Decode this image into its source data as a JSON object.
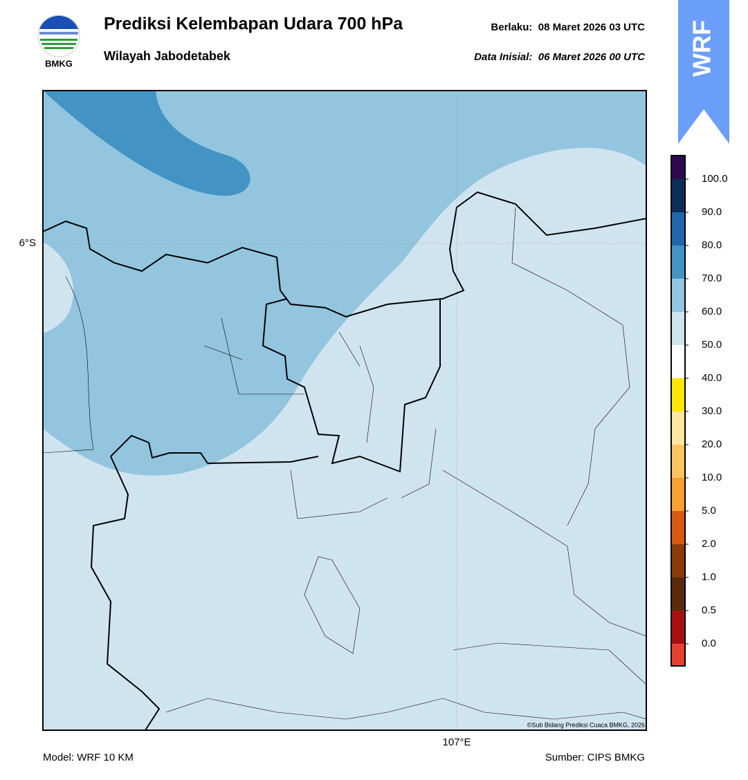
{
  "header": {
    "logo_text": "BMKG",
    "title": "Prediksi Kelembapan Udara 700 hPa",
    "subtitle": "Wilayah Jabodetabek",
    "valid": "Berlaku:  08 Maret 2026 03 UTC",
    "init": "Data Inisial:  06 Maret 2026 00 UTC",
    "badge": "WRF"
  },
  "map": {
    "lat_label": "6°S",
    "lon_label": "107°E",
    "credit": "©Sub Bidang Prediksi Cuaca BMKG, 2026"
  },
  "colorbar": {
    "labels": [
      "0.0",
      "0.5",
      "1.0",
      "2.0",
      "5.0",
      "10.0",
      "20.0",
      "30.0",
      "40.0",
      "50.0",
      "60.0",
      "70.0",
      "80.0",
      "90.0",
      "100.0"
    ],
    "colors": [
      "#e8402f",
      "#a81010",
      "#5a2a0a",
      "#8b3a08",
      "#d85a10",
      "#f8a030",
      "#fcc460",
      "#fde6a0",
      "#ffe600",
      "#ffffff",
      "#d0e4f0",
      "#93c5de",
      "#4393c4",
      "#2166ac",
      "#0c2d5a",
      "#2d0a50"
    ]
  },
  "footer": {
    "model": "Model: WRF 10 KM",
    "source": "Sumber: CIPS BMKG"
  }
}
